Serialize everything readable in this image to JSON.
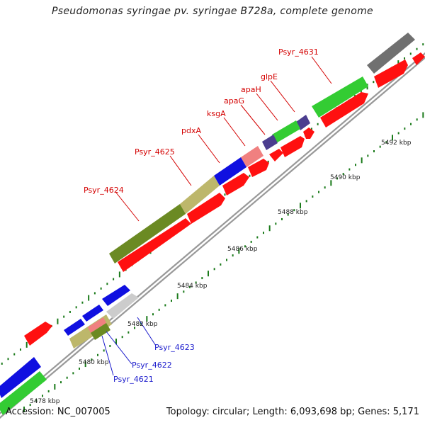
{
  "title": "Pseudomonas syringae pv. syringae B728a, complete genome",
  "footer": {
    "accession": "Accession: NC_007005",
    "stats": "Topology: circular; Length: 6,093,698 bp; Genes: 5,171"
  },
  "tick_labels": [
    "5478 kbp",
    "5480 kbp",
    "5482 kbp",
    "5484 kbp",
    "5486 kbp",
    "5488 kbp",
    "5490 kbp",
    "5492 kbp"
  ],
  "gene_labels_top": [
    "Psyr_4624",
    "Psyr_4625",
    "pdxA",
    "ksgA",
    "apaG",
    "apaH",
    "glpE",
    "Psyr_4631"
  ],
  "gene_labels_bottom": [
    "Psyr_4621",
    "Psyr_4622",
    "Psyr_4623"
  ],
  "colors": {
    "red": "#ff1010",
    "green": "#33cc33",
    "olive": "#6b8a23",
    "khaki": "#bdb76b",
    "blue": "#1010e0",
    "pink": "#f08080",
    "purple": "#4b3d8f",
    "gray": "#707070",
    "lightgray": "#cccccc",
    "backbone": "#999999",
    "tick": "#1a7a1a",
    "label_top": "#d40000",
    "label_bottom": "#1a1acc"
  }
}
